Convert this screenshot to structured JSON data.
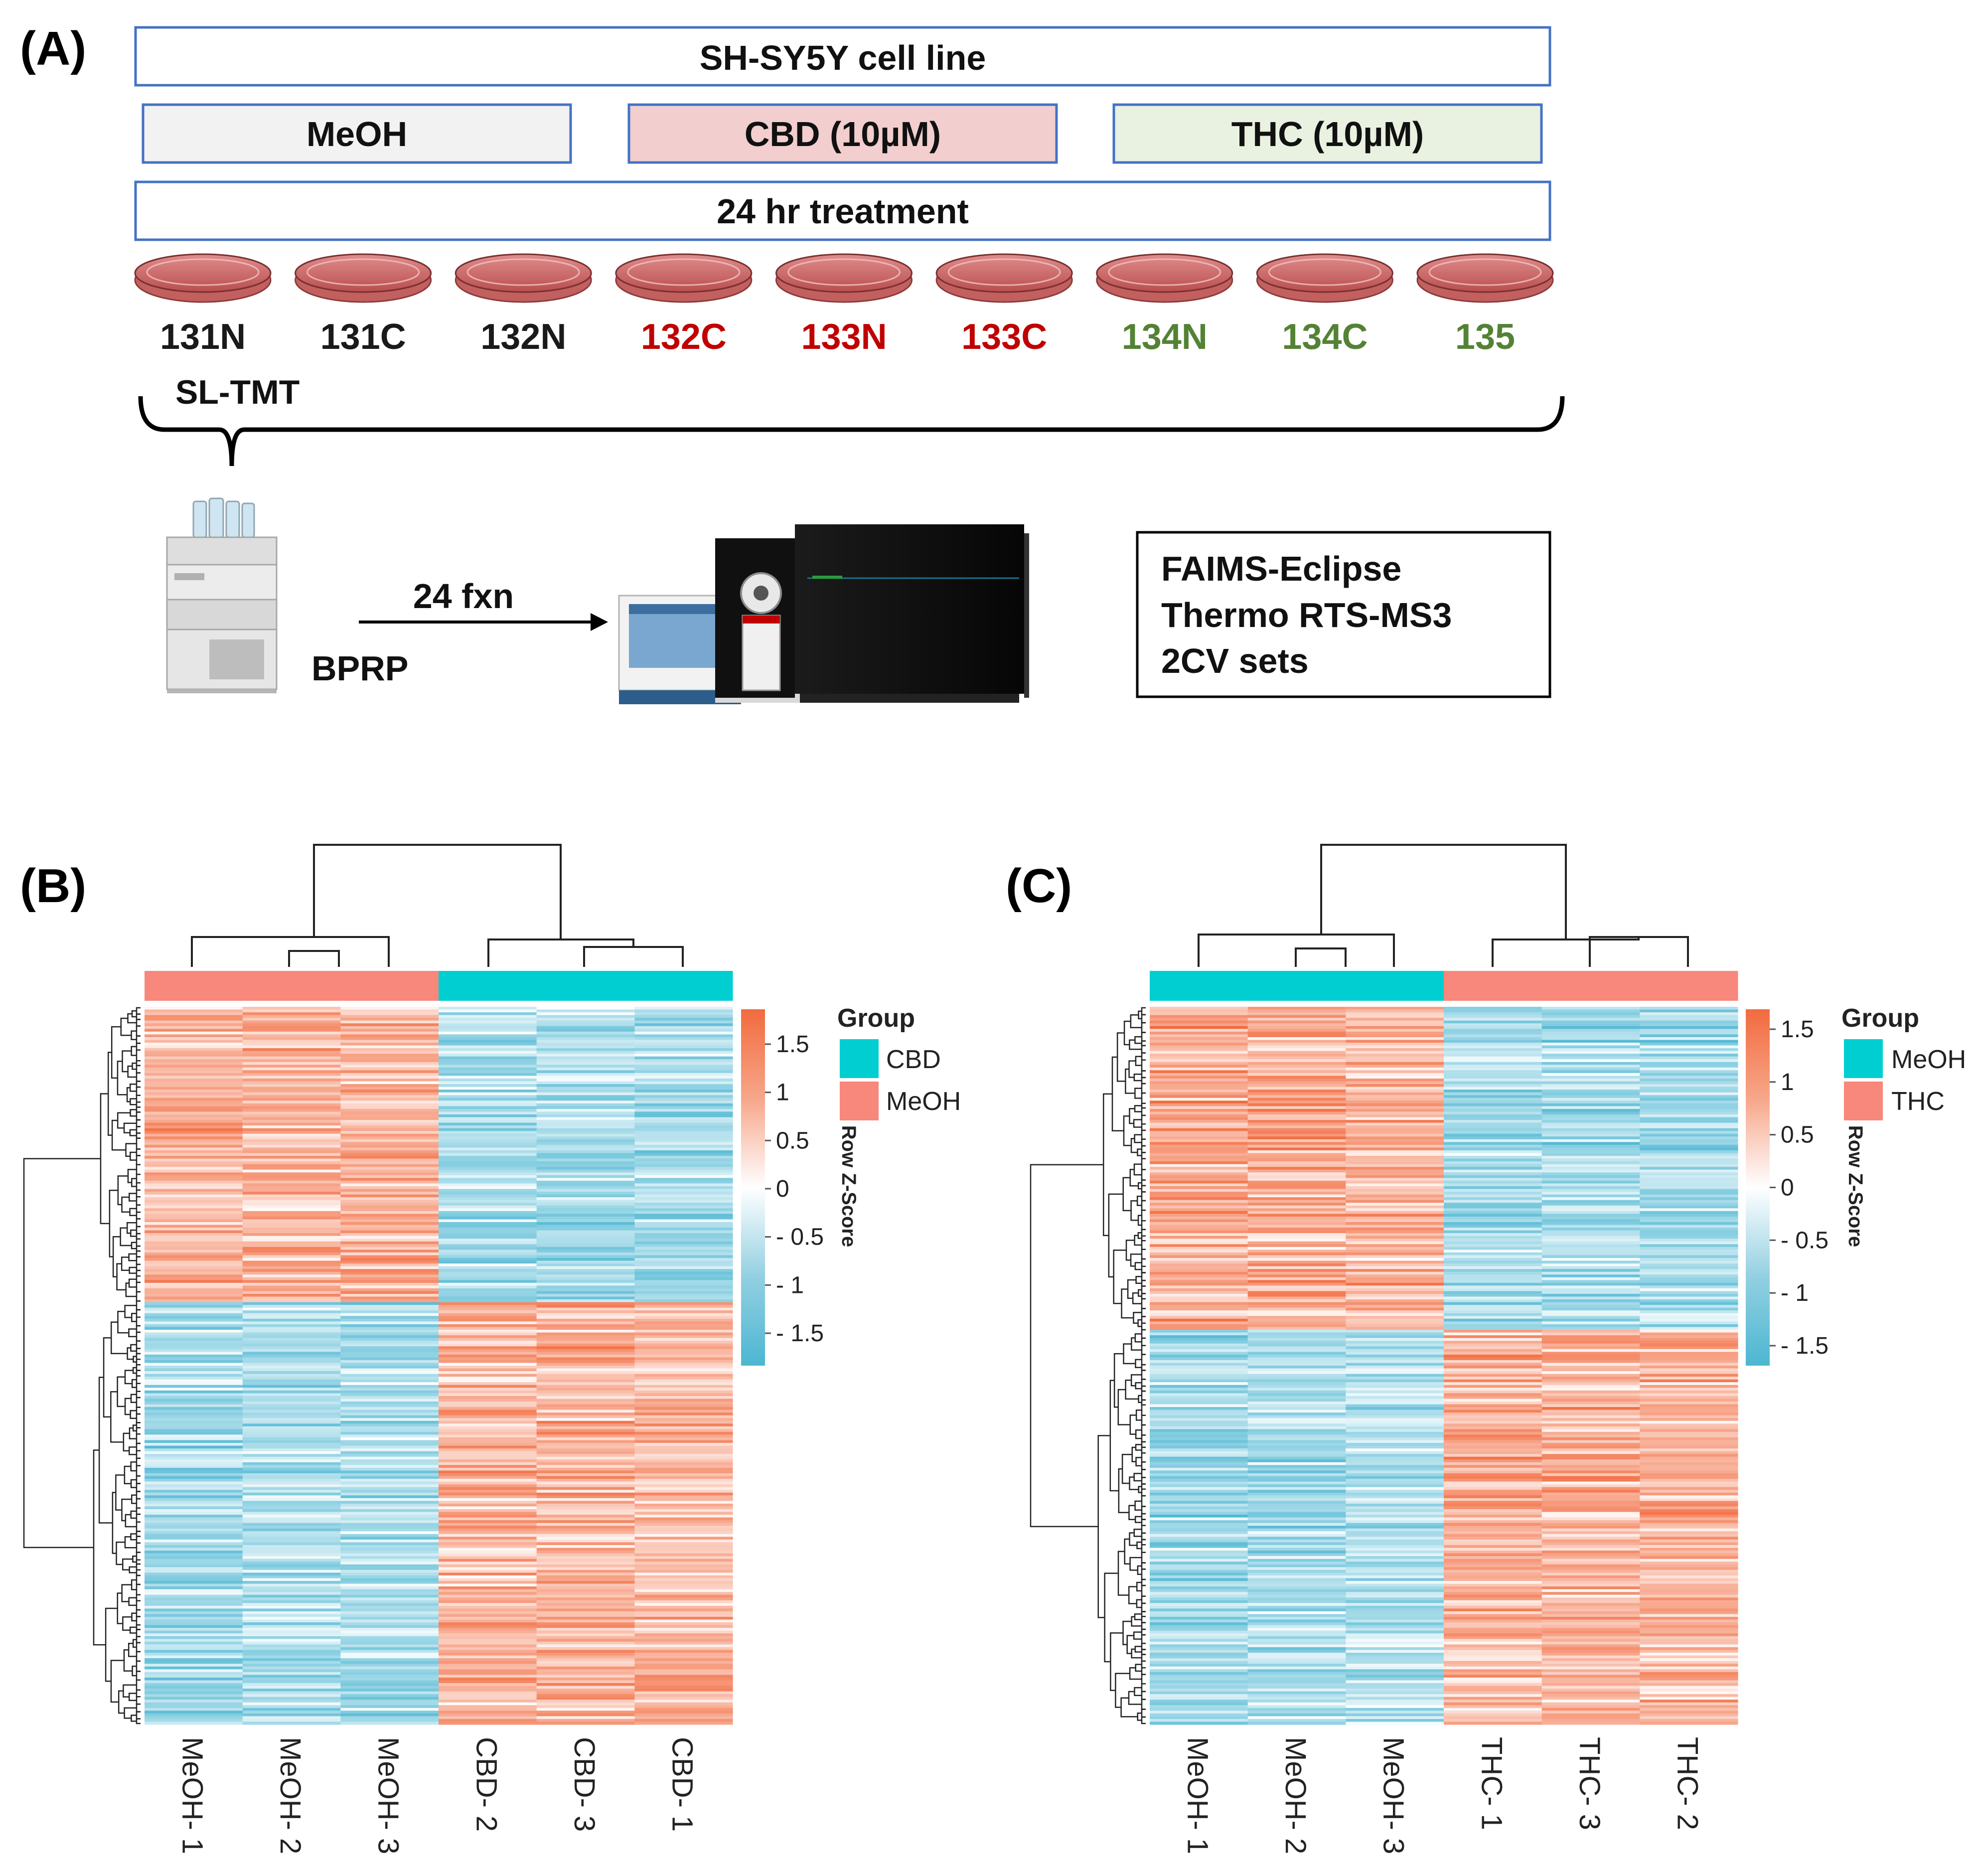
{
  "panel_a": {
    "label": "(A)",
    "cell_line": "SH-SY5Y cell line",
    "treatments": [
      {
        "label": "MeOH",
        "fill": "#f2f2f2"
      },
      {
        "label": "CBD (10µM)",
        "fill": "#f2cece"
      },
      {
        "label": "THC (10µM)",
        "fill": "#e9f1e1"
      }
    ],
    "duration": "24 hr treatment",
    "channels": [
      {
        "label": "131N",
        "color": "#1a1a1a"
      },
      {
        "label": "131C",
        "color": "#1a1a1a"
      },
      {
        "label": "132N",
        "color": "#1a1a1a"
      },
      {
        "label": "132C",
        "color": "#c00000"
      },
      {
        "label": "133N",
        "color": "#c00000"
      },
      {
        "label": "133C",
        "color": "#c00000"
      },
      {
        "label": "134N",
        "color": "#548235"
      },
      {
        "label": "134C",
        "color": "#548235"
      },
      {
        "label": "135",
        "color": "#548235"
      }
    ],
    "labeling": "SL-TMT",
    "fractionation": "BPRP",
    "fractions": "24 fxn",
    "instrument": [
      "FAIMS-Eclipse",
      "Thermo RTS-MS3",
      "2CV sets"
    ],
    "box_border_color": "#4472c4"
  },
  "panel_b": {
    "label": "(B)",
    "legend_title": "Group",
    "legend_items": [
      {
        "label": "CBD",
        "color": "#00ced1"
      },
      {
        "label": "MeOH",
        "color": "#f8877c"
      }
    ],
    "colorbar_title": "Row Z-Score",
    "colorbar_ticks": [
      "1.5",
      "1",
      "0.5",
      "0",
      "- 0.5",
      "- 1",
      "- 1.5"
    ],
    "column_labels": [
      "MeOH- 1",
      "MeOH- 2",
      "MeOH- 3",
      "CBD- 2",
      "CBD- 3",
      "CBD- 1"
    ],
    "column_groups": [
      "MeOH",
      "MeOH",
      "MeOH",
      "CBD",
      "CBD",
      "CBD"
    ]
  },
  "panel_c": {
    "label": "(C)",
    "legend_title": "Group",
    "legend_items": [
      {
        "label": "MeOH",
        "color": "#00ced1"
      },
      {
        "label": "THC",
        "color": "#f8877c"
      }
    ],
    "colorbar_title": "Row Z-Score",
    "colorbar_ticks": [
      "1.5",
      "1",
      "0.5",
      "0",
      "- 0.5",
      "- 1",
      "- 1.5"
    ],
    "column_labels": [
      "MeOH- 1",
      "MeOH- 2",
      "MeOH- 3",
      "THC- 1",
      "THC- 3",
      "THC- 2"
    ],
    "column_groups": [
      "MeOH",
      "MeOH",
      "MeOH",
      "THC",
      "THC",
      "THC"
    ]
  },
  "chart_data": [
    {
      "type": "heatmap",
      "title": "",
      "columns": [
        "MeOH- 1",
        "MeOH- 2",
        "MeOH- 3",
        "CBD- 2",
        "CBD- 3",
        "CBD- 1"
      ],
      "value_label": "Row Z-Score",
      "value_range": [
        -1.5,
        1.5
      ],
      "row_blocks": [
        {
          "rows_fraction": 0.41,
          "mean_z": [
            1.1,
            1.0,
            1.0,
            -1.0,
            -1.0,
            -1.0
          ]
        },
        {
          "rows_fraction": 0.59,
          "mean_z": [
            -1.0,
            -0.9,
            -0.9,
            1.0,
            1.0,
            1.0
          ]
        }
      ]
    },
    {
      "type": "heatmap",
      "title": "",
      "columns": [
        "MeOH- 1",
        "MeOH- 2",
        "MeOH- 3",
        "THC- 1",
        "THC- 3",
        "THC- 2"
      ],
      "value_label": "Row Z-Score",
      "value_range": [
        -1.5,
        1.5
      ],
      "row_blocks": [
        {
          "rows_fraction": 0.45,
          "mean_z": [
            1.1,
            1.1,
            1.0,
            -1.0,
            -1.0,
            -1.0
          ]
        },
        {
          "rows_fraction": 0.55,
          "mean_z": [
            -1.0,
            -1.0,
            -0.8,
            1.0,
            1.0,
            1.0
          ]
        }
      ]
    }
  ]
}
